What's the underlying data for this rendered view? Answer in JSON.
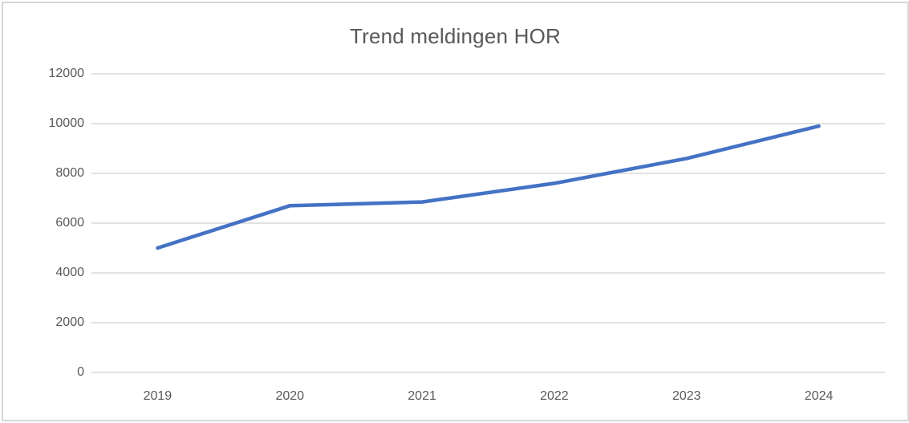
{
  "window": {
    "background": "#ffffff",
    "border_color": "#d6d6d6"
  },
  "chart_data": {
    "type": "line",
    "title": "Trend meldingen HOR",
    "categories": [
      "2019",
      "2020",
      "2021",
      "2022",
      "2023",
      "2024"
    ],
    "values": [
      5000,
      6700,
      6850,
      7600,
      8600,
      9900
    ],
    "xlabel": "",
    "ylabel": "",
    "ylim": [
      0,
      12000
    ],
    "ytick_step": 2000,
    "yticks": [
      0,
      2000,
      4000,
      6000,
      8000,
      10000,
      12000
    ],
    "grid": "horizontal",
    "legend": "none",
    "line_width": 4.5,
    "colors": {
      "line": "#4472c4",
      "gridline": "#d9d9d9",
      "text": "#595959",
      "title": "#595959"
    }
  }
}
